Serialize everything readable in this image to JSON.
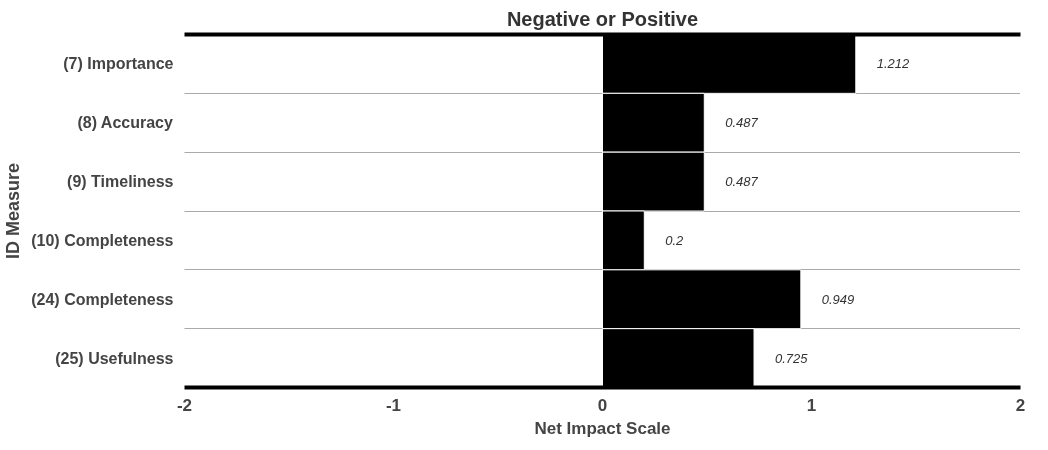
{
  "chart_data": {
    "type": "bar",
    "orientation": "horizontal",
    "title": "Negative or Positive",
    "ylabel": "ID Measure",
    "xlabel": "Net Impact Scale",
    "categories": [
      "(7) Importance",
      "(8) Accuracy",
      "(9) Timeliness",
      "(10) Completeness",
      "(24) Completeness",
      "(25) Usefulness"
    ],
    "values": [
      1.212,
      0.487,
      0.487,
      0.2,
      0.949,
      0.725
    ],
    "color": "#000000",
    "xlim": [
      -2,
      2
    ],
    "xticks": [
      -2,
      -1,
      0,
      1,
      2
    ],
    "data_labels": true,
    "grid": "y"
  }
}
